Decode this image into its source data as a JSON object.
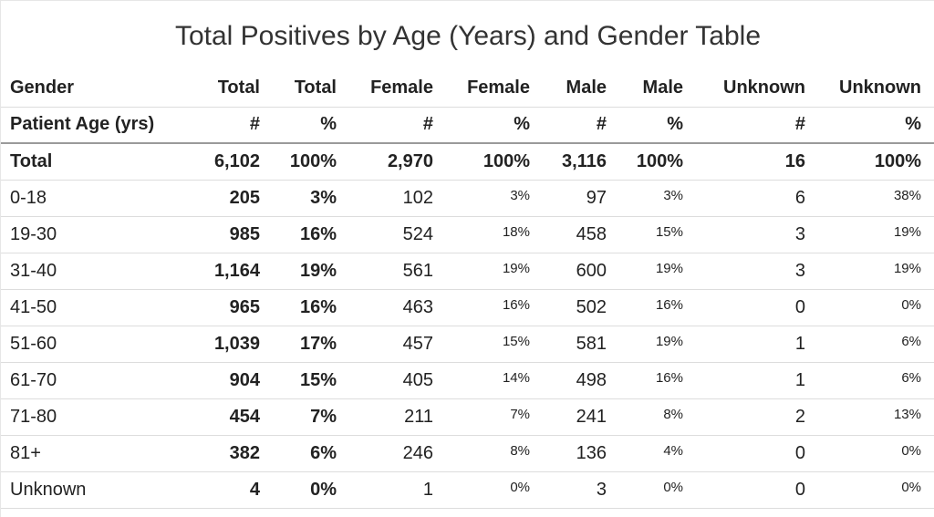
{
  "chart_data": {
    "type": "table",
    "title": "Total Positives by Age (Years) and Gender Table",
    "header_row_1": [
      "Gender",
      "Total",
      "Total",
      "Female",
      "Female",
      "Male",
      "Male",
      "Unknown",
      "Unknown"
    ],
    "header_row_2": [
      "Patient Age (yrs)",
      "#",
      "%",
      "#",
      "%",
      "#",
      "%",
      "#",
      "%"
    ],
    "rows": [
      [
        "Total",
        "6,102",
        "100%",
        "2,970",
        "100%",
        "3,116",
        "100%",
        "16",
        "100%"
      ],
      [
        "0-18",
        "205",
        "3%",
        "102",
        "3%",
        "97",
        "3%",
        "6",
        "38%"
      ],
      [
        "19-30",
        "985",
        "16%",
        "524",
        "18%",
        "458",
        "15%",
        "3",
        "19%"
      ],
      [
        "31-40",
        "1,164",
        "19%",
        "561",
        "19%",
        "600",
        "19%",
        "3",
        "19%"
      ],
      [
        "41-50",
        "965",
        "16%",
        "463",
        "16%",
        "502",
        "16%",
        "0",
        "0%"
      ],
      [
        "51-60",
        "1,039",
        "17%",
        "457",
        "15%",
        "581",
        "19%",
        "1",
        "6%"
      ],
      [
        "61-70",
        "904",
        "15%",
        "405",
        "14%",
        "498",
        "16%",
        "1",
        "6%"
      ],
      [
        "71-80",
        "454",
        "7%",
        "211",
        "7%",
        "241",
        "8%",
        "2",
        "13%"
      ],
      [
        "81+",
        "382",
        "6%",
        "246",
        "8%",
        "136",
        "4%",
        "0",
        "0%"
      ],
      [
        "Unknown",
        "4",
        "0%",
        "1",
        "0%",
        "3",
        "0%",
        "0",
        "0%"
      ]
    ]
  }
}
